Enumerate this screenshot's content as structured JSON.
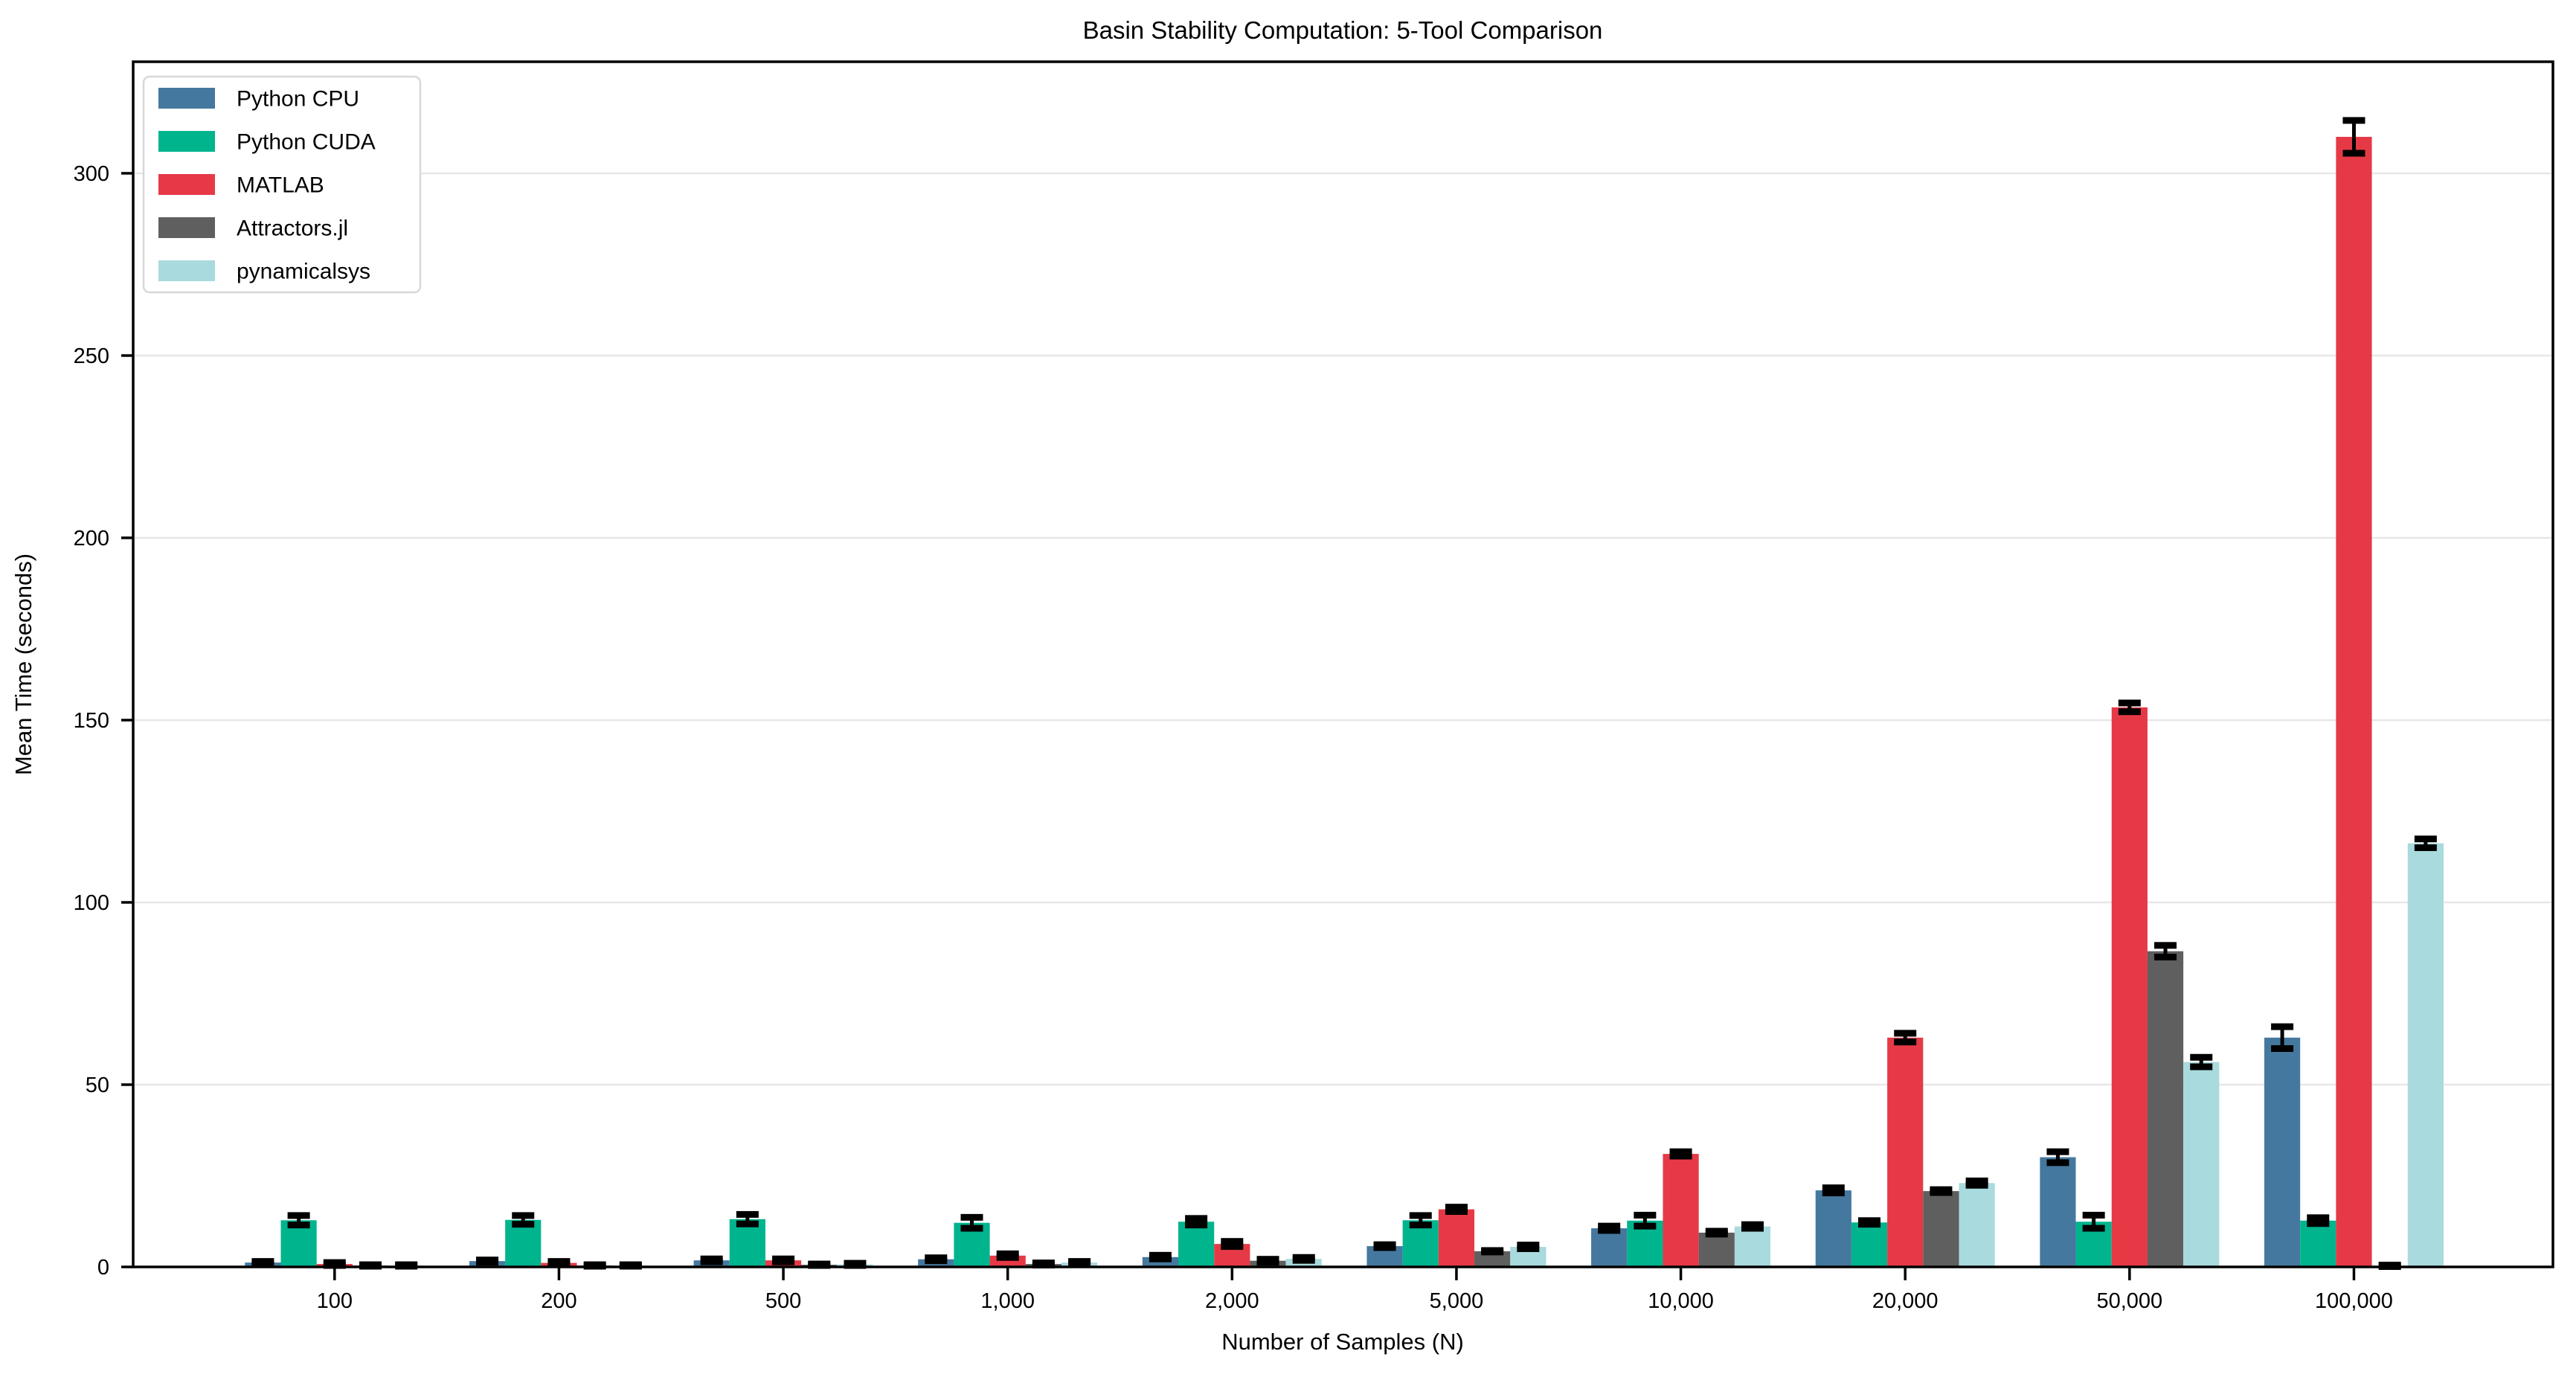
{
  "chart_data": {
    "type": "bar",
    "title": "Basin Stability Computation: 5-Tool Comparison",
    "xlabel": "Number of Samples (N)",
    "ylabel": "Mean Time (seconds)",
    "categories": [
      "100",
      "200",
      "500",
      "1,000",
      "2,000",
      "5,000",
      "10,000",
      "20,000",
      "50,000",
      "100,000"
    ],
    "series": [
      {
        "name": "Python CPU",
        "color": "#45789E",
        "values": [
          1.2,
          1.6,
          1.8,
          2.1,
          2.7,
          5.7,
          10.6,
          21.0,
          30.1,
          62.9
        ],
        "errors": [
          0.3,
          0.3,
          0.4,
          0.4,
          0.5,
          0.4,
          0.6,
          0.7,
          1.5,
          3.0
        ]
      },
      {
        "name": "Python CUDA",
        "color": "#00B48E",
        "values": [
          12.8,
          12.9,
          13.1,
          12.1,
          12.4,
          12.8,
          12.7,
          12.2,
          12.4,
          12.7
        ],
        "errors": [
          1.3,
          1.2,
          1.3,
          1.5,
          0.9,
          1.3,
          1.5,
          0.5,
          1.8,
          0.8
        ]
      },
      {
        "name": "MATLAB",
        "color": "#E63946",
        "values": [
          0.8,
          1.1,
          1.8,
          3.1,
          6.3,
          15.8,
          31.0,
          62.9,
          153.5,
          310.0
        ],
        "errors": [
          0.4,
          0.4,
          0.4,
          0.5,
          0.7,
          0.6,
          0.6,
          1.2,
          1.2,
          4.5
        ]
      },
      {
        "name": "Attractors.jl",
        "color": "#5F5F5F",
        "values": [
          0.4,
          0.4,
          0.6,
          0.8,
          1.7,
          4.3,
          9.4,
          20.8,
          86.6,
          0.3
        ],
        "errors": [
          0.2,
          0.2,
          0.2,
          0.3,
          0.4,
          0.2,
          0.4,
          0.4,
          1.6,
          0.2
        ]
      },
      {
        "name": "pynamicalsys",
        "color": "#A9DADD",
        "values": [
          0.4,
          0.4,
          0.7,
          1.2,
          2.2,
          5.5,
          11.1,
          23.0,
          56.2,
          116.2
        ],
        "errors": [
          0.2,
          0.2,
          0.3,
          0.3,
          0.4,
          0.5,
          0.5,
          0.6,
          1.3,
          1.2
        ]
      }
    ],
    "yticks": [
      0,
      50,
      100,
      150,
      200,
      250,
      300
    ],
    "ylim": [
      0,
      330.6
    ],
    "grid": "horizontal",
    "error_bars": true,
    "legend_position": "upper-left",
    "colors": {
      "grid": "#E7E7E7",
      "axis": "#000000",
      "background": "#FFFFFF",
      "legend_border": "#D8D8D8",
      "error_bar": "#000000"
    }
  }
}
